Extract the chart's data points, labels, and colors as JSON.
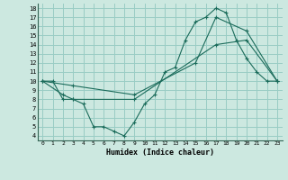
{
  "xlabel": "Humidex (Indice chaleur)",
  "background_color": "#cce8e0",
  "grid_color": "#99ccc4",
  "line_color": "#1a6b5a",
  "xlim": [
    -0.5,
    23.5
  ],
  "ylim": [
    3.5,
    18.5
  ],
  "xticks": [
    0,
    1,
    2,
    3,
    4,
    5,
    6,
    7,
    8,
    9,
    10,
    11,
    12,
    13,
    14,
    15,
    16,
    17,
    18,
    19,
    20,
    21,
    22,
    23
  ],
  "yticks": [
    4,
    5,
    6,
    7,
    8,
    9,
    10,
    11,
    12,
    13,
    14,
    15,
    16,
    17,
    18
  ],
  "line1_x": [
    0,
    1,
    2,
    3,
    4,
    5,
    6,
    7,
    8,
    9,
    10,
    11,
    12,
    13,
    14,
    15,
    16,
    17,
    18,
    19,
    20,
    21,
    22,
    23
  ],
  "line1_y": [
    10,
    10,
    8,
    8,
    7.5,
    5,
    5,
    4.5,
    4,
    5.5,
    7.5,
    8.5,
    11,
    11.5,
    14.5,
    16.5,
    17,
    18,
    17.5,
    14.5,
    12.5,
    11,
    10,
    10
  ],
  "line2_x": [
    0,
    2,
    3,
    9,
    17,
    20,
    23
  ],
  "line2_y": [
    10,
    8.5,
    8,
    8,
    14,
    14.5,
    10
  ],
  "line3_x": [
    0,
    3,
    9,
    15,
    17,
    20,
    23
  ],
  "line3_y": [
    10,
    9.5,
    8.5,
    12,
    17,
    15.5,
    10
  ]
}
